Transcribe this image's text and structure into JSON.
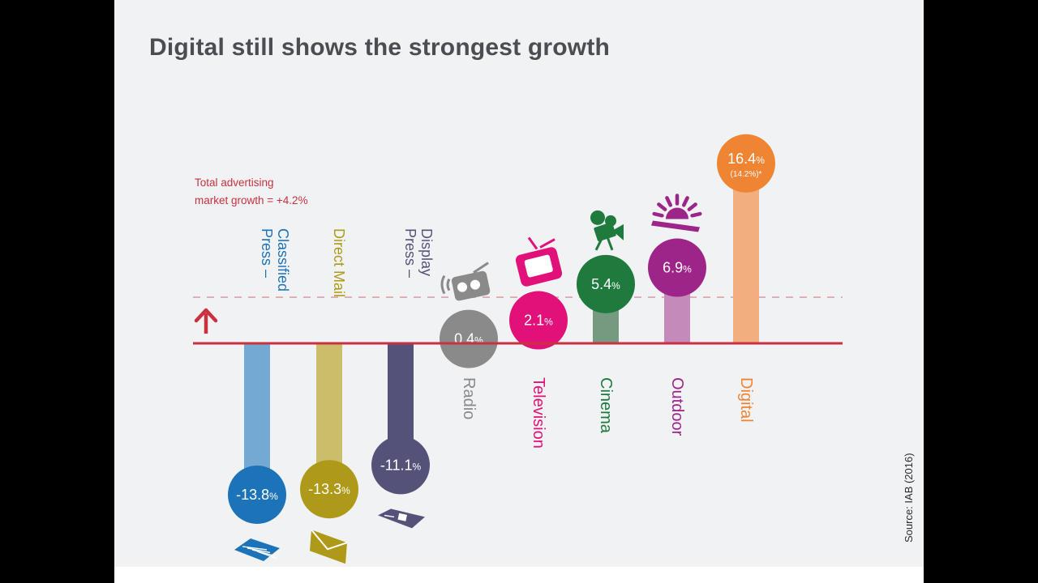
{
  "slide": {
    "title": "Digital still shows the strongest growth",
    "source": "Source: IAB (2016)"
  },
  "chart_data": {
    "type": "bar",
    "title": "Digital still shows the strongest growth",
    "annotation": {
      "line1": "Total advertising",
      "line2": "market growth = +4.2%",
      "value": 4.2
    },
    "baseline": 0,
    "unit": "%",
    "categories": [
      "Press – Classified",
      "Direct Mail",
      "Press – Display",
      "Radio",
      "Television",
      "Cinema",
      "Outdoor",
      "Digital"
    ],
    "series": [
      {
        "name": "Growth",
        "values": [
          -13.8,
          -13.3,
          -11.1,
          0.4,
          2.1,
          5.4,
          6.9,
          16.4
        ]
      }
    ],
    "items": [
      {
        "category": "Press – Classified",
        "label_lines": [
          "Press –",
          "Classified"
        ],
        "value": -13.8,
        "value_text": "-13.8",
        "percent_sign": "%",
        "sub_label": "",
        "color": "#1c73b8",
        "bar_color": "#74a9d4",
        "icon": "newspaper-icon"
      },
      {
        "category": "Direct Mail",
        "label_lines": [
          "Direct Mail"
        ],
        "value": -13.3,
        "value_text": "-13.3",
        "percent_sign": "%",
        "sub_label": "",
        "color": "#ae9a18",
        "bar_color": "#cbbd6a",
        "icon": "envelope-icon"
      },
      {
        "category": "Press – Display",
        "label_lines": [
          "Press –",
          "Display"
        ],
        "value": -11.1,
        "value_text": "-11.1",
        "percent_sign": "%",
        "sub_label": "",
        "color": "#55527a",
        "bar_color": "#55527a",
        "icon": "magazine-icon"
      },
      {
        "category": "Radio",
        "label_lines": [
          "Radio"
        ],
        "value": 0.4,
        "value_text": "0.4",
        "percent_sign": "%",
        "sub_label": "",
        "color": "#8a8a8a",
        "bar_color": "#8a8a8a",
        "icon": "radio-icon"
      },
      {
        "category": "Television",
        "label_lines": [
          "Television"
        ],
        "value": 2.1,
        "value_text": "2.1",
        "percent_sign": "%",
        "sub_label": "",
        "color": "#e2117a",
        "bar_color": "#e2117a",
        "icon": "tv-icon"
      },
      {
        "category": "Cinema",
        "label_lines": [
          "Cinema"
        ],
        "value": 5.4,
        "value_text": "5.4",
        "percent_sign": "%",
        "sub_label": "",
        "color": "#1f7a3e",
        "bar_color": "#759a7f",
        "icon": "film-camera-icon"
      },
      {
        "category": "Outdoor",
        "label_lines": [
          "Outdoor"
        ],
        "value": 6.9,
        "value_text": "6.9",
        "percent_sign": "%",
        "sub_label": "",
        "color": "#9d2589",
        "bar_color": "#c48ab9",
        "icon": "sun-billboard-icon"
      },
      {
        "category": "Digital",
        "label_lines": [
          "Digital"
        ],
        "value": 16.4,
        "value_text": "16.4",
        "percent_sign": "%",
        "sub_label": "(14.2%)*",
        "color": "#ef8533",
        "bar_color": "#f2ae7e",
        "icon": ""
      }
    ],
    "colors": {
      "baseline": "#c8313d",
      "arrow": "#c8313d",
      "reference_line": "#d6a3a9",
      "annotation_text": "#c8313d"
    }
  }
}
